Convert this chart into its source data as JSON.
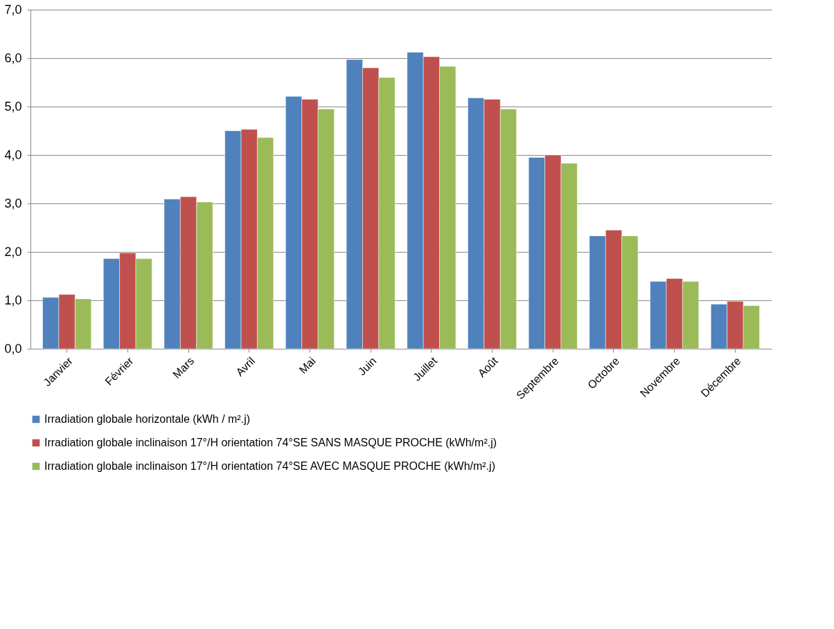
{
  "chart_data": {
    "type": "bar",
    "categories": [
      "Janvier",
      "Février",
      "Mars",
      "Avril",
      "Mai",
      "Juin",
      "Juillet",
      "Août",
      "Septembre",
      "Octobre",
      "Novembre",
      "Décembre"
    ],
    "series": [
      {
        "name": "Irradiation globale horizontale (kWh / m².j)",
        "color": "#4f81bd",
        "values": [
          1.06,
          1.86,
          3.09,
          4.5,
          5.21,
          5.97,
          6.12,
          5.18,
          3.95,
          2.33,
          1.39,
          0.92
        ]
      },
      {
        "name": "Irradiation globale inclinaison 17°/H orientation 74°SE SANS MASQUE PROCHE (kWh/m².j)",
        "color": "#c0504d",
        "values": [
          1.12,
          1.98,
          3.14,
          4.53,
          5.15,
          5.8,
          6.03,
          5.15,
          4.0,
          2.45,
          1.45,
          0.98
        ]
      },
      {
        "name": "Irradiation globale inclinaison 17°/H orientation 74°SE AVEC MASQUE PROCHE (kWh/m².j)",
        "color": "#9bbb59",
        "values": [
          1.03,
          1.86,
          3.03,
          4.36,
          4.95,
          5.6,
          5.83,
          4.95,
          3.83,
          2.33,
          1.39,
          0.89
        ]
      }
    ],
    "ylim": [
      0,
      7
    ],
    "yticks": [
      {
        "value": 0,
        "label": "0,0"
      },
      {
        "value": 1,
        "label": "1,0"
      },
      {
        "value": 2,
        "label": "2,0"
      },
      {
        "value": 3,
        "label": "3,0"
      },
      {
        "value": 4,
        "label": "4,0"
      },
      {
        "value": 5,
        "label": "5,0"
      },
      {
        "value": 6,
        "label": "6,0"
      },
      {
        "value": 7,
        "label": "7,0"
      }
    ],
    "grid": "y",
    "legend": "bottom"
  }
}
